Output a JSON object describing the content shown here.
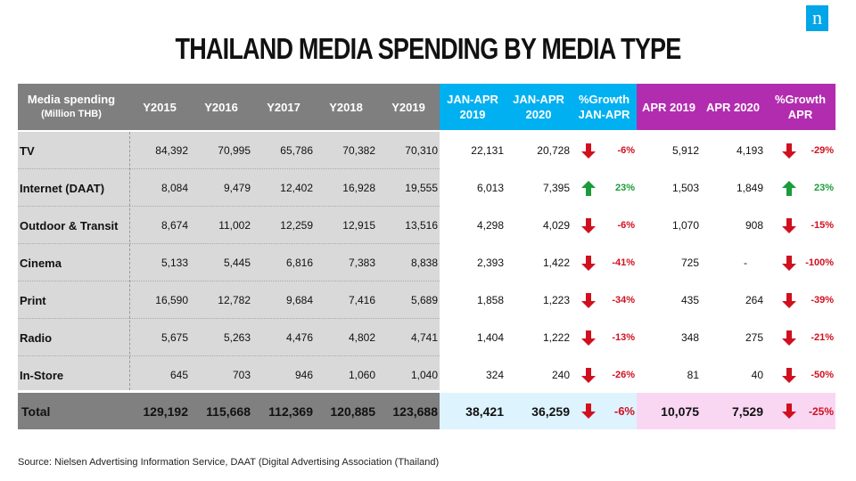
{
  "logo": {
    "text": "n"
  },
  "title": "THAILAND MEDIA SPENDING BY MEDIA TYPE",
  "colors": {
    "header_gray": "#7f7f7f",
    "header_blue": "#00b0f0",
    "header_purple": "#b22cb0",
    "body_gray": "#d9d9d9",
    "body_blue": "#ddf3fd",
    "body_pink": "#f9d7f3",
    "total_gray": "#808080",
    "up_arrow": "#1a9c3a",
    "down_arrow": "#d0101f"
  },
  "headers": {
    "media_line1": "Media spending",
    "media_line2": "(Million THB)",
    "y2015": "Y2015",
    "y2016": "Y2016",
    "y2017": "Y2017",
    "y2018": "Y2018",
    "y2019": "Y2019",
    "janapr2019_l1": "JAN-APR",
    "janapr2019_l2": "2019",
    "janapr2020_l1": "JAN-APR",
    "janapr2020_l2": "2020",
    "growth_janapr_l1": "%Growth",
    "growth_janapr_l2": "JAN-APR",
    "apr2019": "APR 2019",
    "apr2020": "APR 2020",
    "growth_apr_l1": "%Growth",
    "growth_apr_l2": "APR"
  },
  "rows": [
    {
      "label": "TV",
      "y2015": "84,392",
      "y2016": "70,995",
      "y2017": "65,786",
      "y2018": "70,382",
      "y2019": "70,310",
      "ja2019": "22,131",
      "ja2020": "20,728",
      "ja_dir": "down",
      "ja_growth": "-6%",
      "apr2019": "5,912",
      "apr2020": "4,193",
      "apr_dir": "down",
      "apr_growth": "-29%"
    },
    {
      "label": "Internet (DAAT)",
      "y2015": "8,084",
      "y2016": "9,479",
      "y2017": "12,402",
      "y2018": "16,928",
      "y2019": "19,555",
      "ja2019": "6,013",
      "ja2020": "7,395",
      "ja_dir": "up",
      "ja_growth": "23%",
      "apr2019": "1,503",
      "apr2020": "1,849",
      "apr_dir": "up",
      "apr_growth": "23%"
    },
    {
      "label": "Outdoor & Transit",
      "y2015": "8,674",
      "y2016": "11,002",
      "y2017": "12,259",
      "y2018": "12,915",
      "y2019": "13,516",
      "ja2019": "4,298",
      "ja2020": "4,029",
      "ja_dir": "down",
      "ja_growth": "-6%",
      "apr2019": "1,070",
      "apr2020": "908",
      "apr_dir": "down",
      "apr_growth": "-15%"
    },
    {
      "label": "Cinema",
      "y2015": "5,133",
      "y2016": "5,445",
      "y2017": "6,816",
      "y2018": "7,383",
      "y2019": "8,838",
      "ja2019": "2,393",
      "ja2020": "1,422",
      "ja_dir": "down",
      "ja_growth": "-41%",
      "apr2019": "725",
      "apr2020": "-",
      "apr_dir": "down",
      "apr_growth": "-100%"
    },
    {
      "label": "Print",
      "y2015": "16,590",
      "y2016": "12,782",
      "y2017": "9,684",
      "y2018": "7,416",
      "y2019": "5,689",
      "ja2019": "1,858",
      "ja2020": "1,223",
      "ja_dir": "down",
      "ja_growth": "-34%",
      "apr2019": "435",
      "apr2020": "264",
      "apr_dir": "down",
      "apr_growth": "-39%"
    },
    {
      "label": "Radio",
      "y2015": "5,675",
      "y2016": "5,263",
      "y2017": "4,476",
      "y2018": "4,802",
      "y2019": "4,741",
      "ja2019": "1,404",
      "ja2020": "1,222",
      "ja_dir": "down",
      "ja_growth": "-13%",
      "apr2019": "348",
      "apr2020": "275",
      "apr_dir": "down",
      "apr_growth": "-21%"
    },
    {
      "label": "In-Store",
      "y2015": "645",
      "y2016": "703",
      "y2017": "946",
      "y2018": "1,060",
      "y2019": "1,040",
      "ja2019": "324",
      "ja2020": "240",
      "ja_dir": "down",
      "ja_growth": "-26%",
      "apr2019": "81",
      "apr2020": "40",
      "apr_dir": "down",
      "apr_growth": "-50%"
    }
  ],
  "total": {
    "label": "Total",
    "y2015": "129,192",
    "y2016": "115,668",
    "y2017": "112,369",
    "y2018": "120,885",
    "y2019": "123,688",
    "ja2019": "38,421",
    "ja2020": "36,259",
    "ja_dir": "down",
    "ja_growth": "-6%",
    "apr2019": "10,075",
    "apr2020": "7,529",
    "apr_dir": "down",
    "apr_growth": "-25%"
  },
  "source": "Source: Nielsen Advertising Information Service, DAAT  (Digital Advertising Association (Thailand)"
}
